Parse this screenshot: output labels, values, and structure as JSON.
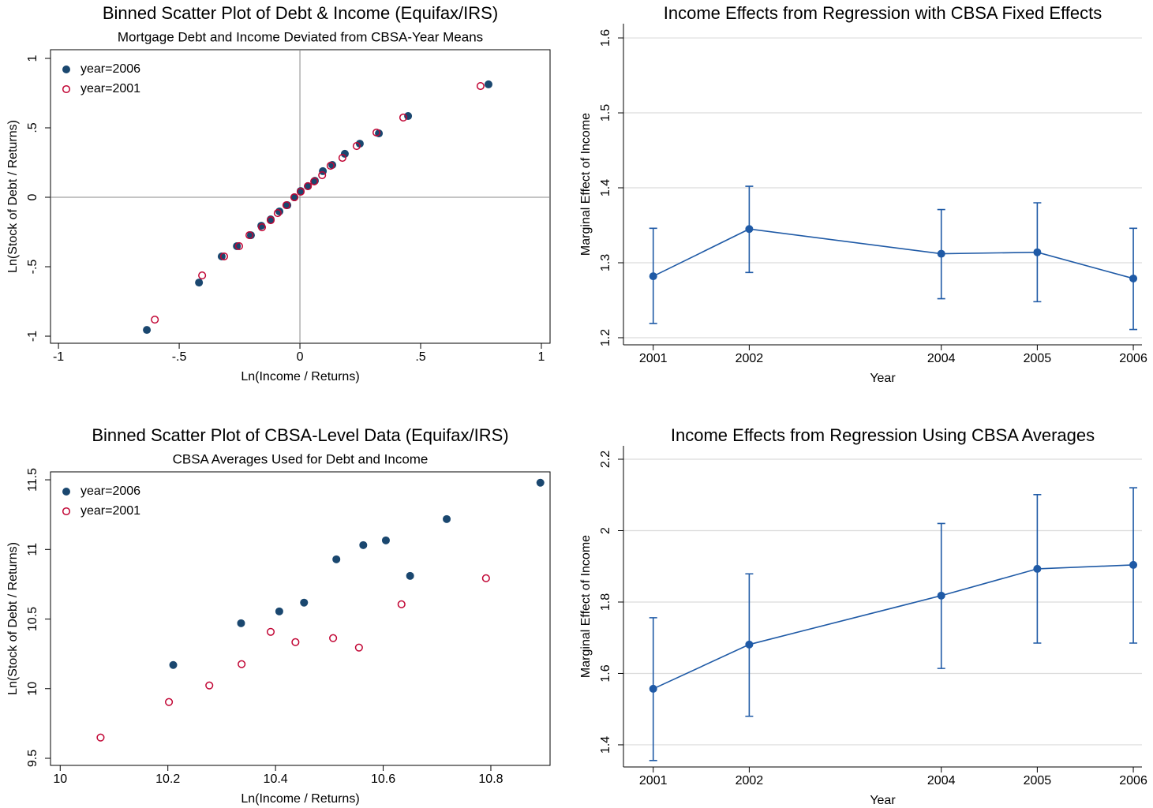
{
  "chart_data": [
    {
      "type": "scatter",
      "title": "Binned Scatter Plot of Debt & Income (Equifax/IRS)",
      "subtitle": "Mortgage Debt and Income Deviated from CBSA-Year Means",
      "x_label": "Ln(Income / Returns)",
      "y_label": "Ln(Stock of Debt / Returns)",
      "xlim": [
        -1.033,
        1.036
      ],
      "ylim": [
        -1.051,
        1.0625
      ],
      "xticks": [
        -1,
        {
          "value": -0.5,
          "label": "-.5"
        },
        0,
        {
          "value": 0.5,
          "label": ".5"
        },
        1
      ],
      "yticks": [
        -1,
        {
          "value": -0.5,
          "label": "-.5"
        },
        0,
        {
          "value": 0.5,
          "label": ".5"
        },
        1
      ],
      "xline": 0,
      "yline": 0,
      "legend": "top-left",
      "series": [
        {
          "name": "year=2006",
          "color": "#1a476f",
          "marker": "filled",
          "x": [
            -0.634,
            -0.418,
            -0.324,
            -0.261,
            -0.203,
            -0.16,
            -0.121,
            -0.085,
            -0.052,
            -0.023,
            0.003,
            0.033,
            0.062,
            0.095,
            0.134,
            0.186,
            0.248,
            0.327,
            0.448,
            0.781
          ],
          "y": [
            -0.955,
            -0.614,
            -0.426,
            -0.352,
            -0.273,
            -0.205,
            -0.159,
            -0.102,
            -0.057,
            0,
            0.045,
            0.08,
            0.119,
            0.188,
            0.233,
            0.313,
            0.386,
            0.46,
            0.585,
            0.813
          ]
        },
        {
          "name": "year=2001",
          "color": "#c10534",
          "marker": "hollow",
          "x": [
            -0.601,
            -0.405,
            -0.314,
            -0.252,
            -0.209,
            -0.157,
            -0.121,
            -0.092,
            -0.056,
            -0.023,
            0.003,
            0.033,
            0.059,
            0.092,
            0.127,
            0.176,
            0.235,
            0.317,
            0.428,
            0.748
          ],
          "y": [
            -0.881,
            -0.563,
            -0.426,
            -0.352,
            -0.273,
            -0.216,
            -0.165,
            -0.114,
            -0.057,
            0,
            0.04,
            0.08,
            0.114,
            0.159,
            0.227,
            0.284,
            0.369,
            0.466,
            0.574,
            0.801
          ]
        }
      ]
    },
    {
      "type": "line",
      "title": "Income Effects from Regression with CBSA Fixed Effects",
      "x_label": "Year",
      "y_label": "Marginal Effect of Income",
      "xlim": [
        2000.69,
        2006.09
      ],
      "ylim": [
        1.1905,
        1.619
      ],
      "xticks": [
        2001,
        2002,
        2004,
        2005,
        2006
      ],
      "yticks": [
        1.2,
        1.3,
        1.4,
        1.5,
        1.6
      ],
      "grid": true,
      "x": [
        2001,
        2002,
        2004,
        2005,
        2006
      ],
      "series": [
        {
          "color": "#1f5aa6",
          "values": [
            1.282,
            1.345,
            1.312,
            1.314,
            1.279
          ],
          "lower": [
            1.219,
            1.287,
            1.252,
            1.248,
            1.211
          ],
          "upper": [
            1.346,
            1.402,
            1.371,
            1.38,
            1.346
          ]
        }
      ]
    },
    {
      "type": "scatter",
      "title": "Binned Scatter Plot of CBSA-Level Data (Equifax/IRS)",
      "subtitle": "CBSA Averages Used for Debt and Income",
      "x_label": "Ln(Income / Returns)",
      "y_label": "Ln(Stock of Debt / Returns)",
      "xlim": [
        9.982,
        10.91
      ],
      "ylim": [
        9.449,
        11.557
      ],
      "xticks": [
        10,
        10.2,
        10.4,
        10.6,
        10.8
      ],
      "yticks": [
        9.5,
        10,
        10.5,
        11,
        11.5
      ],
      "legend": "top-left",
      "series": [
        {
          "name": "year=2006",
          "color": "#1a476f",
          "marker": "filled",
          "x": [
            10.21,
            10.336,
            10.407,
            10.453,
            10.513,
            10.563,
            10.605,
            10.65,
            10.718,
            10.892
          ],
          "y": [
            10.17,
            10.47,
            10.555,
            10.618,
            10.929,
            11.031,
            11.065,
            10.81,
            11.218,
            11.479
          ]
        },
        {
          "name": "year=2001",
          "color": "#c10534",
          "marker": "hollow",
          "x": [
            10.075,
            10.202,
            10.277,
            10.337,
            10.391,
            10.437,
            10.507,
            10.555,
            10.634,
            10.791
          ],
          "y": [
            9.649,
            9.904,
            10.023,
            10.176,
            10.408,
            10.334,
            10.363,
            10.295,
            10.606,
            10.793
          ]
        }
      ]
    },
    {
      "type": "line",
      "title": "Income Effects from Regression Using CBSA Averages",
      "x_label": "Year",
      "y_label": "Marginal Effect of Income",
      "xlim": [
        2000.69,
        2006.09
      ],
      "ylim": [
        1.338,
        2.2376
      ],
      "xticks": [
        2001,
        2002,
        2004,
        2005,
        2006
      ],
      "yticks": [
        1.4,
        1.6,
        1.8,
        2,
        2.2
      ],
      "grid": true,
      "x": [
        2001,
        2002,
        2004,
        2005,
        2006
      ],
      "series": [
        {
          "color": "#1f5aa6",
          "values": [
            1.557,
            1.681,
            1.818,
            1.893,
            1.904
          ],
          "lower": [
            1.356,
            1.48,
            1.614,
            1.685,
            1.685
          ],
          "upper": [
            1.756,
            1.879,
            2.02,
            2.101,
            2.12
          ]
        }
      ]
    }
  ]
}
